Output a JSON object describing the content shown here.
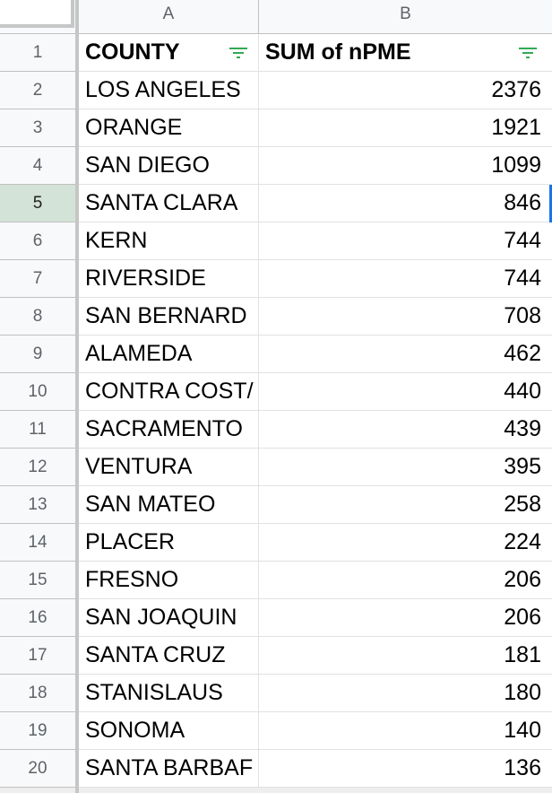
{
  "columns": {
    "a": "A",
    "b": "B"
  },
  "header": {
    "county": "COUNTY",
    "sum": "SUM of nPME"
  },
  "icons": {
    "filter": "filter-icon"
  },
  "colors": {
    "filter_icon": "#34a853",
    "selection": "#1a73e8",
    "active_row_header": "#d3e3d7"
  },
  "row_numbers": [
    "1",
    "2",
    "3",
    "4",
    "5",
    "6",
    "7",
    "8",
    "9",
    "10",
    "11",
    "12",
    "13",
    "14",
    "15",
    "16",
    "17",
    "18",
    "19",
    "20"
  ],
  "active_row_number": "5",
  "rows": [
    {
      "county": "LOS ANGELES",
      "value": "2376"
    },
    {
      "county": "ORANGE",
      "value": "1921"
    },
    {
      "county": "SAN DIEGO",
      "value": "1099"
    },
    {
      "county": "SANTA CLARA",
      "value": "846"
    },
    {
      "county": "KERN",
      "value": "744"
    },
    {
      "county": "RIVERSIDE",
      "value": "744"
    },
    {
      "county": "SAN BERNARD",
      "value": "708"
    },
    {
      "county": "ALAMEDA",
      "value": "462"
    },
    {
      "county": "CONTRA COST/",
      "value": "440"
    },
    {
      "county": "SACRAMENTO",
      "value": "439"
    },
    {
      "county": "VENTURA",
      "value": "395"
    },
    {
      "county": "SAN MATEO",
      "value": "258"
    },
    {
      "county": "PLACER",
      "value": "224"
    },
    {
      "county": "FRESNO",
      "value": "206"
    },
    {
      "county": "SAN JOAQUIN",
      "value": "206"
    },
    {
      "county": "SANTA CRUZ",
      "value": "181"
    },
    {
      "county": "STANISLAUS",
      "value": "180"
    },
    {
      "county": "SONOMA",
      "value": "140"
    },
    {
      "county": "SANTA BARBAF",
      "value": "136"
    }
  ]
}
